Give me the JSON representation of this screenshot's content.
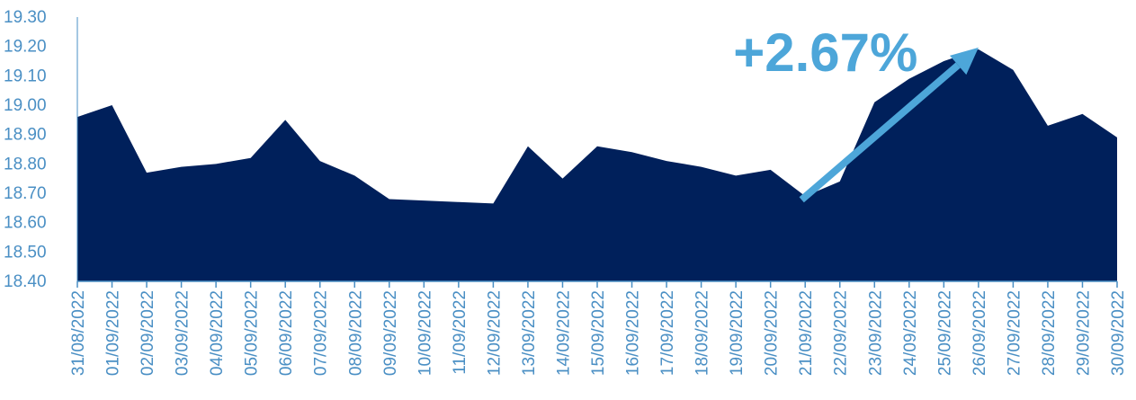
{
  "chart_data": {
    "type": "area",
    "title": "",
    "xlabel": "",
    "ylabel": "",
    "ylim": [
      18.4,
      19.3
    ],
    "yticks": [
      "18.40",
      "18.50",
      "18.60",
      "18.70",
      "18.80",
      "18.90",
      "19.00",
      "19.10",
      "19.20",
      "19.30"
    ],
    "categories": [
      "31/08/2022",
      "01/09/2022",
      "02/09/2022",
      "03/09/2022",
      "04/09/2022",
      "05/09/2022",
      "06/09/2022",
      "07/09/2022",
      "08/09/2022",
      "09/09/2022",
      "10/09/2022",
      "11/09/2022",
      "12/09/2022",
      "13/09/2022",
      "14/09/2022",
      "15/09/2022",
      "16/09/2022",
      "17/09/2022",
      "18/09/2022",
      "19/09/2022",
      "20/09/2022",
      "21/09/2022",
      "22/09/2022",
      "23/09/2022",
      "24/09/2022",
      "25/09/2022",
      "26/09/2022",
      "27/09/2022",
      "28/09/2022",
      "29/09/2022",
      "30/09/2022"
    ],
    "values": [
      18.96,
      19.0,
      18.77,
      18.79,
      18.8,
      18.82,
      18.95,
      18.81,
      18.76,
      18.68,
      18.675,
      18.67,
      18.665,
      18.86,
      18.75,
      18.86,
      18.84,
      18.81,
      18.79,
      18.76,
      18.78,
      18.69,
      18.74,
      19.01,
      19.09,
      19.15,
      19.19,
      19.12,
      18.93,
      18.97,
      18.89
    ],
    "area_color": "#00205b",
    "axis_color": "#4a8fc4",
    "grid": false,
    "annotation": {
      "text": "+2.67%",
      "color": "#4da6d9",
      "from_category": "21/09/2022",
      "from_value": 18.69,
      "to_category": "26/09/2022",
      "to_value": 19.19
    }
  }
}
